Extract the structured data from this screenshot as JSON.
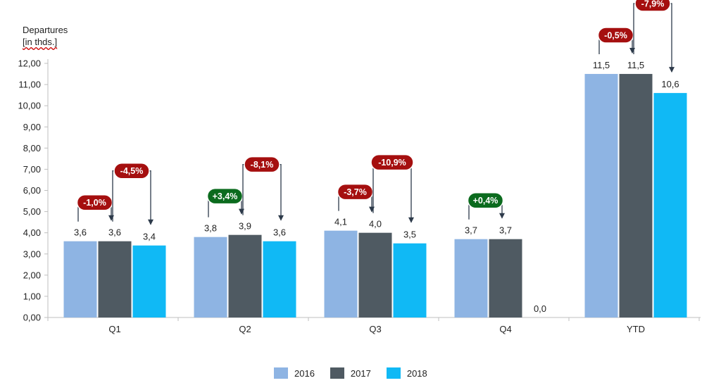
{
  "chart_data": {
    "type": "bar",
    "ylabel": [
      "Departures",
      "[in thds.]"
    ],
    "ylim": [
      0,
      12
    ],
    "yticks": [
      "0,00",
      "1,00",
      "2,00",
      "3,00",
      "4,00",
      "5,00",
      "6,00",
      "7,00",
      "8,00",
      "9,00",
      "10,00",
      "11,00",
      "12,00"
    ],
    "categories": [
      "Q1",
      "Q2",
      "Q3",
      "Q4",
      "YTD"
    ],
    "series": [
      {
        "name": "2016",
        "color": "#8eb4e3",
        "values": [
          3.6,
          3.8,
          4.1,
          3.7,
          11.5
        ],
        "labels": [
          "3,6",
          "3,8",
          "4,1",
          "3,7",
          "11,5"
        ]
      },
      {
        "name": "2017",
        "color": "#4f5a62",
        "values": [
          3.6,
          3.9,
          4.0,
          3.7,
          11.5
        ],
        "labels": [
          "3,6",
          "3,9",
          "4,0",
          "3,7",
          "11,5"
        ]
      },
      {
        "name": "2018",
        "color": "#10b9f5",
        "values": [
          3.4,
          3.6,
          3.5,
          0.0,
          10.6
        ],
        "labels": [
          "3,4",
          "3,6",
          "3,5",
          "0,0",
          "10,6"
        ]
      }
    ],
    "changes": [
      {
        "category": "Q1",
        "from": 0,
        "to": 1,
        "label": "-1,0%",
        "color": "#a50f0f"
      },
      {
        "category": "Q1",
        "from": 1,
        "to": 2,
        "label": "-4,5%",
        "color": "#a50f0f"
      },
      {
        "category": "Q2",
        "from": 0,
        "to": 1,
        "label": "+3,4%",
        "color": "#0b6b1e"
      },
      {
        "category": "Q2",
        "from": 1,
        "to": 2,
        "label": "-8,1%",
        "color": "#a50f0f"
      },
      {
        "category": "Q3",
        "from": 0,
        "to": 1,
        "label": "-3,7%",
        "color": "#a50f0f"
      },
      {
        "category": "Q3",
        "from": 1,
        "to": 2,
        "label": "-10,9%",
        "color": "#a50f0f"
      },
      {
        "category": "Q4",
        "from": 0,
        "to": 1,
        "label": "+0,4%",
        "color": "#0b6b1e"
      },
      {
        "category": "YTD",
        "from": 0,
        "to": 1,
        "label": "-0,5%",
        "color": "#a50f0f"
      },
      {
        "category": "YTD",
        "from": 1,
        "to": 2,
        "label": "-7,9%",
        "color": "#a50f0f"
      }
    ],
    "legend": "bottom-center",
    "grid": false
  }
}
